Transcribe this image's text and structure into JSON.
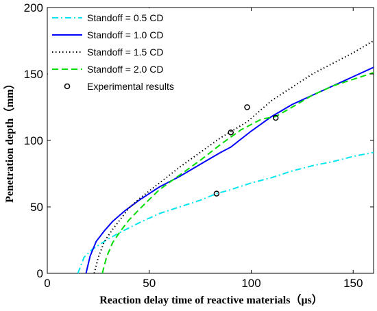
{
  "chart_data": {
    "type": "line",
    "xlabel": "Reaction delay time of reactive materials（μs）",
    "ylabel": "Penetration depth（mm）",
    "xlim": [
      0,
      160
    ],
    "ylim": [
      0,
      200
    ],
    "xticks": [
      0,
      50,
      100,
      150
    ],
    "yticks": [
      0,
      50,
      100,
      150,
      200
    ],
    "grid": false,
    "legend_position": "top-left",
    "series": [
      {
        "name": "Standoff = 0.5 CD",
        "color": "#00e5ee",
        "dash": "dashdot",
        "x": [
          15,
          18,
          22,
          26,
          30,
          36,
          45,
          55,
          65,
          75,
          83,
          90,
          100,
          110,
          120,
          130,
          140,
          150,
          160
        ],
        "y": [
          0,
          12,
          18,
          22,
          26,
          31,
          38,
          45,
          50,
          55,
          60,
          63,
          68,
          72,
          77,
          81,
          84,
          88,
          91
        ]
      },
      {
        "name": "Standoff = 1.0 CD",
        "color": "#0000ff",
        "dash": "solid",
        "x": [
          19,
          21,
          24,
          28,
          32,
          38,
          45,
          55,
          65,
          75,
          85,
          90,
          100,
          110,
          120,
          130,
          140,
          150,
          160
        ],
        "y": [
          0,
          13,
          24,
          32,
          39,
          47,
          55,
          65,
          73,
          82,
          91,
          95,
          107,
          118,
          127,
          134,
          141,
          148,
          155
        ]
      },
      {
        "name": "Standoff = 1.5 CD",
        "color": "#000000",
        "dash": "dotted",
        "x": [
          23,
          25,
          28,
          32,
          36,
          40,
          45,
          55,
          65,
          75,
          85,
          98,
          110,
          120,
          130,
          140,
          150,
          160
        ],
        "y": [
          0,
          12,
          24,
          33,
          41,
          49,
          56,
          68,
          80,
          91,
          102,
          114,
          130,
          140,
          150,
          158,
          166,
          175
        ]
      },
      {
        "name": "Standoff = 2.0 CD",
        "color": "#00dd00",
        "dash": "dashed",
        "x": [
          27,
          29,
          32,
          36,
          40,
          45,
          55,
          65,
          75,
          85,
          95,
          105,
          112,
          120,
          130,
          140,
          150,
          160
        ],
        "y": [
          0,
          12,
          23,
          32,
          40,
          48,
          63,
          74,
          85,
          97,
          108,
          116,
          118,
          125,
          134,
          141,
          146,
          151
        ]
      }
    ],
    "experimental": {
      "name": "Experimental results",
      "x": [
        83,
        90,
        98,
        112
      ],
      "y": [
        60,
        106,
        125,
        117
      ]
    }
  }
}
